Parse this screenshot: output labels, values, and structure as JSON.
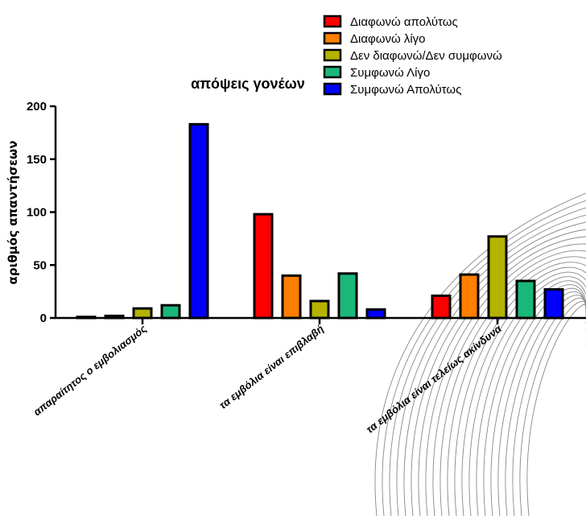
{
  "chart_data": {
    "type": "bar",
    "title": "απόψεις γονέων",
    "xlabel": "",
    "ylabel": "αριθμός απαντήσεων",
    "ylim": [
      0,
      200
    ],
    "yticks": [
      0,
      50,
      100,
      150,
      200
    ],
    "categories": [
      "απαραίτητος ο εμβολιασμός",
      "τα εμβόλια είναι επιβλαβή",
      "τα εμβόλια είναι τελείως ακίνδυνα"
    ],
    "series": [
      {
        "name": "Διαφωνώ απολύτως",
        "color": "#ff0000",
        "values": [
          1,
          98,
          21
        ]
      },
      {
        "name": "Διαφωνώ λίγο",
        "color": "#ff7f00",
        "values": [
          2,
          40,
          41
        ]
      },
      {
        "name": "Δεν διαφωνώ/Δεν συμφωνώ",
        "color": "#b5b300",
        "values": [
          9,
          16,
          77
        ]
      },
      {
        "name": "Συμφωνώ Λίγο",
        "color": "#1ab87a",
        "values": [
          12,
          42,
          35
        ]
      },
      {
        "name": "Συμφωνώ Απολύτως",
        "color": "#0000ff",
        "values": [
          183,
          8,
          27
        ]
      }
    ],
    "legend_position": "top-right",
    "grid": false
  }
}
